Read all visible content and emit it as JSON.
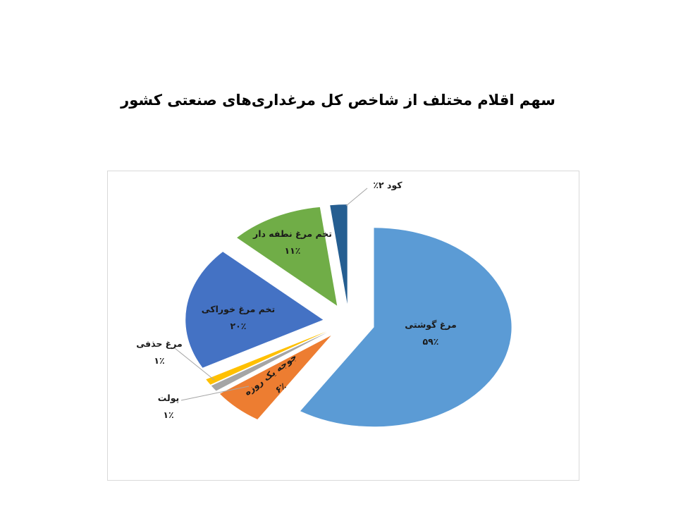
{
  "title": "سهم اقلام مختلف از شاخص کل مرغداری‌های صنعتی کشور",
  "chart_data": {
    "type": "pie",
    "title": "سهم اقلام مختلف از شاخص کل مرغداری‌های صنعتی کشور",
    "unit": "percent",
    "direction": "clockwise",
    "start_angle_deg": 0,
    "exploded": true,
    "legend": "none",
    "series": [
      {
        "name": "مرغ گوشتی",
        "value": 59,
        "pct_label": "۵۹٪",
        "color": "#5B9BD5",
        "label_placement": "inside"
      },
      {
        "name": "جوجه یک روزه",
        "value": 6,
        "pct_label": "۶٪",
        "color": "#ED7D31",
        "label_placement": "inside-rotated"
      },
      {
        "name": "پولت",
        "value": 1,
        "pct_label": "۱٪",
        "color": "#A5A5A5",
        "label_placement": "callout"
      },
      {
        "name": "مرغ حذفی",
        "value": 1,
        "pct_label": "۱٪",
        "color": "#FFC000",
        "label_placement": "callout"
      },
      {
        "name": "تخم مرغ خوراکی",
        "value": 20,
        "pct_label": "۲۰٪",
        "color": "#4472C4",
        "label_placement": "inside"
      },
      {
        "name": "تخم مرغ نطفه دار",
        "value": 11,
        "pct_label": "۱۱٪",
        "color": "#70AD47",
        "label_placement": "inside"
      },
      {
        "name": "کود",
        "value": 2,
        "pct_label": "۲٪",
        "color": "#255E91",
        "label_placement": "callout"
      }
    ]
  },
  "colors": {
    "chart_border": "#d9d9d9",
    "leader_line": "#a6a6a6",
    "label_text": "#1a1a1a",
    "title_text": "#000000",
    "background": "#ffffff"
  }
}
